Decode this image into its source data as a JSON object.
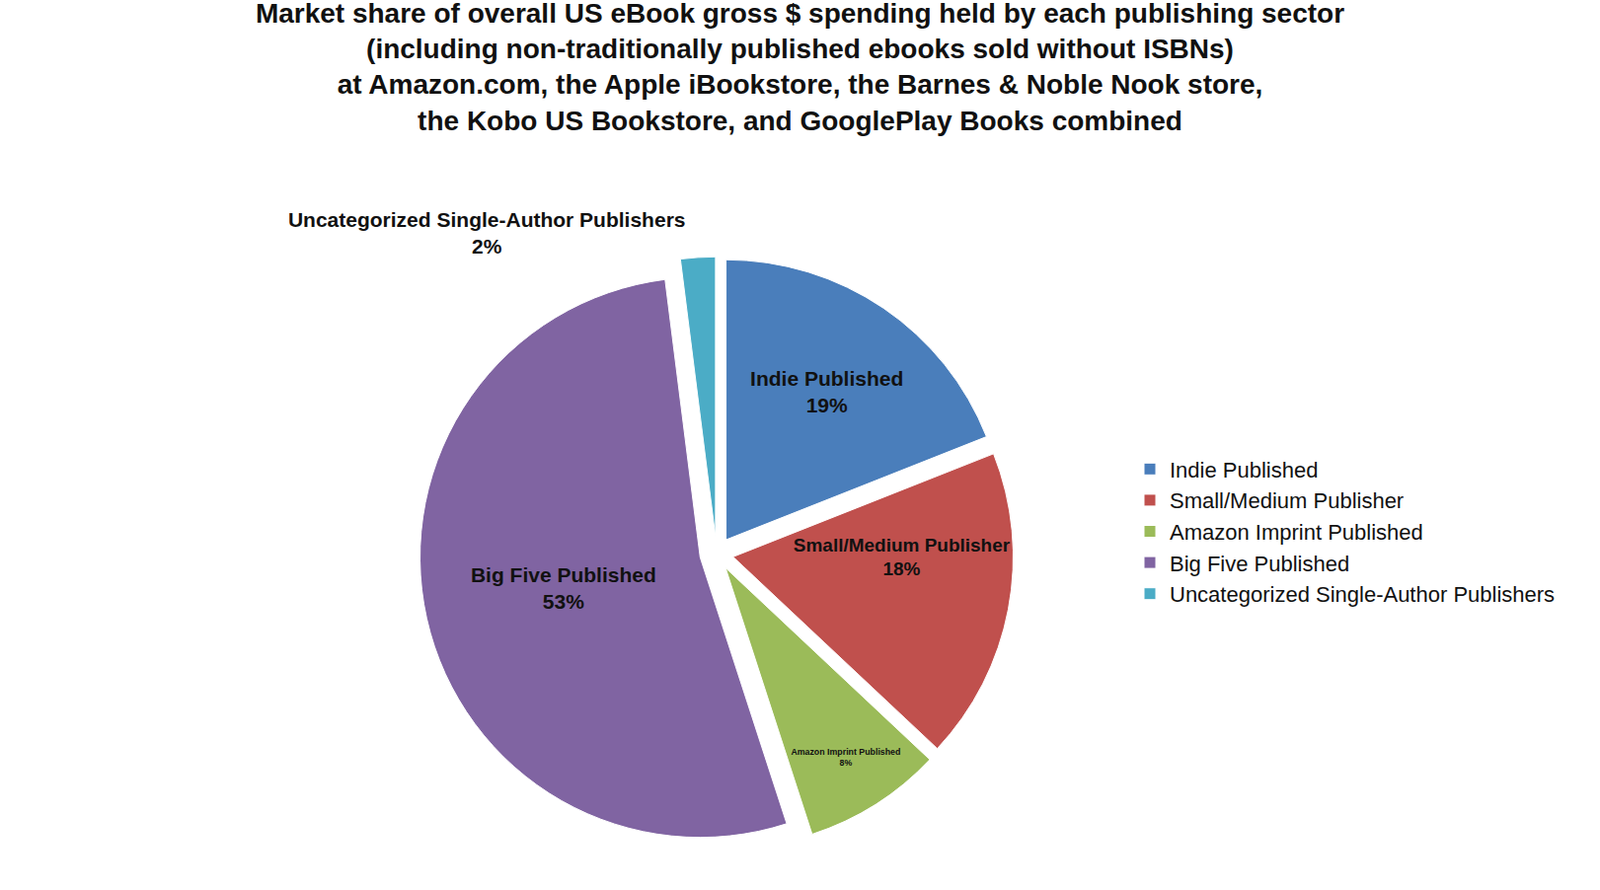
{
  "chart_data": {
    "type": "pie",
    "title": "Market share of overall US eBook gross $ spending held by each publishing sector\n(including non-traditionally published ebooks sold without ISBNs)\nat Amazon.com, the Apple iBookstore, the Barnes & Noble Nook store,\nthe Kobo US Bookstore, and GooglePlay Books combined",
    "categories": [
      "Indie Published",
      "Small/Medium Publisher",
      "Amazon Imprint Published",
      "Big Five Published",
      "Uncategorized Single-Author Publishers"
    ],
    "values": [
      19,
      18,
      8,
      53,
      2
    ],
    "value_labels": [
      "19%",
      "18%",
      "8%",
      "53%",
      "2%"
    ],
    "colors": [
      "#4a7ebb",
      "#c0504d",
      "#9bbb59",
      "#8064a2",
      "#4bacc6"
    ],
    "data_labels": true,
    "legend": "right"
  }
}
